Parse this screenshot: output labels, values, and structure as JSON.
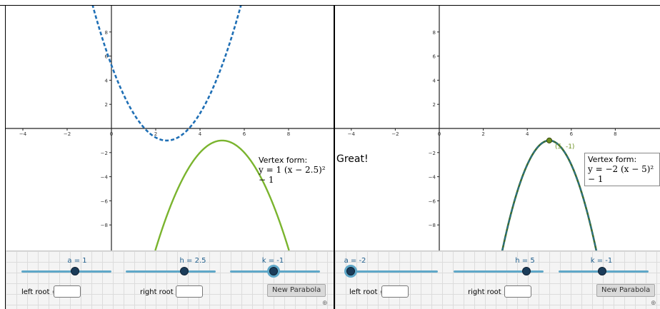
{
  "left_panel": {
    "y_ticks": [
      "8",
      "6",
      "4",
      "2",
      "−2",
      "−4",
      "−6",
      "−8"
    ],
    "x_ticks": [
      "−4",
      "−2",
      "0",
      "2",
      "4",
      "6",
      "8"
    ],
    "vertex_form": {
      "title": "Vertex form:",
      "equation": "y = 1 (x − 2.5)² − 1"
    },
    "sliders": [
      {
        "label": "a = 1",
        "value": 1
      },
      {
        "label": "h = 2.5",
        "value": 2.5
      },
      {
        "label": "k = -1",
        "value": -1
      }
    ],
    "left_root_label": "left root =",
    "right_root_label": "right root =",
    "left_root_value": "",
    "right_root_value": "",
    "new_parabola_label": "New Parabola",
    "colors": {
      "blue_curve": "#1f6fb5",
      "green_curve": "#7ab42e"
    }
  },
  "right_panel": {
    "y_ticks": [
      "8",
      "6",
      "4",
      "2",
      "−2",
      "−4",
      "−6",
      "−8"
    ],
    "x_ticks": [
      "−4",
      "−2",
      "0",
      "2",
      "4",
      "6",
      "8"
    ],
    "great_text": "Great!",
    "vertex_label": "(5, -1)",
    "vertex_form": {
      "title": "Vertex form:",
      "equation": "y = −2 (x − 5)² − 1"
    },
    "sliders": [
      {
        "label": "a = -2",
        "value": -2
      },
      {
        "label": "h = 5",
        "value": 5
      },
      {
        "label": "k = -1",
        "value": -1
      }
    ],
    "left_root_label": "left root =",
    "right_root_label": "right root =",
    "left_root_value": "",
    "right_root_value": "",
    "new_parabola_label": "New Parabola",
    "colors": {
      "dashed_curve": "#1f6fb5",
      "green_curve": "#3a6b2e",
      "vertex_point": "#6b8f1e"
    }
  }
}
